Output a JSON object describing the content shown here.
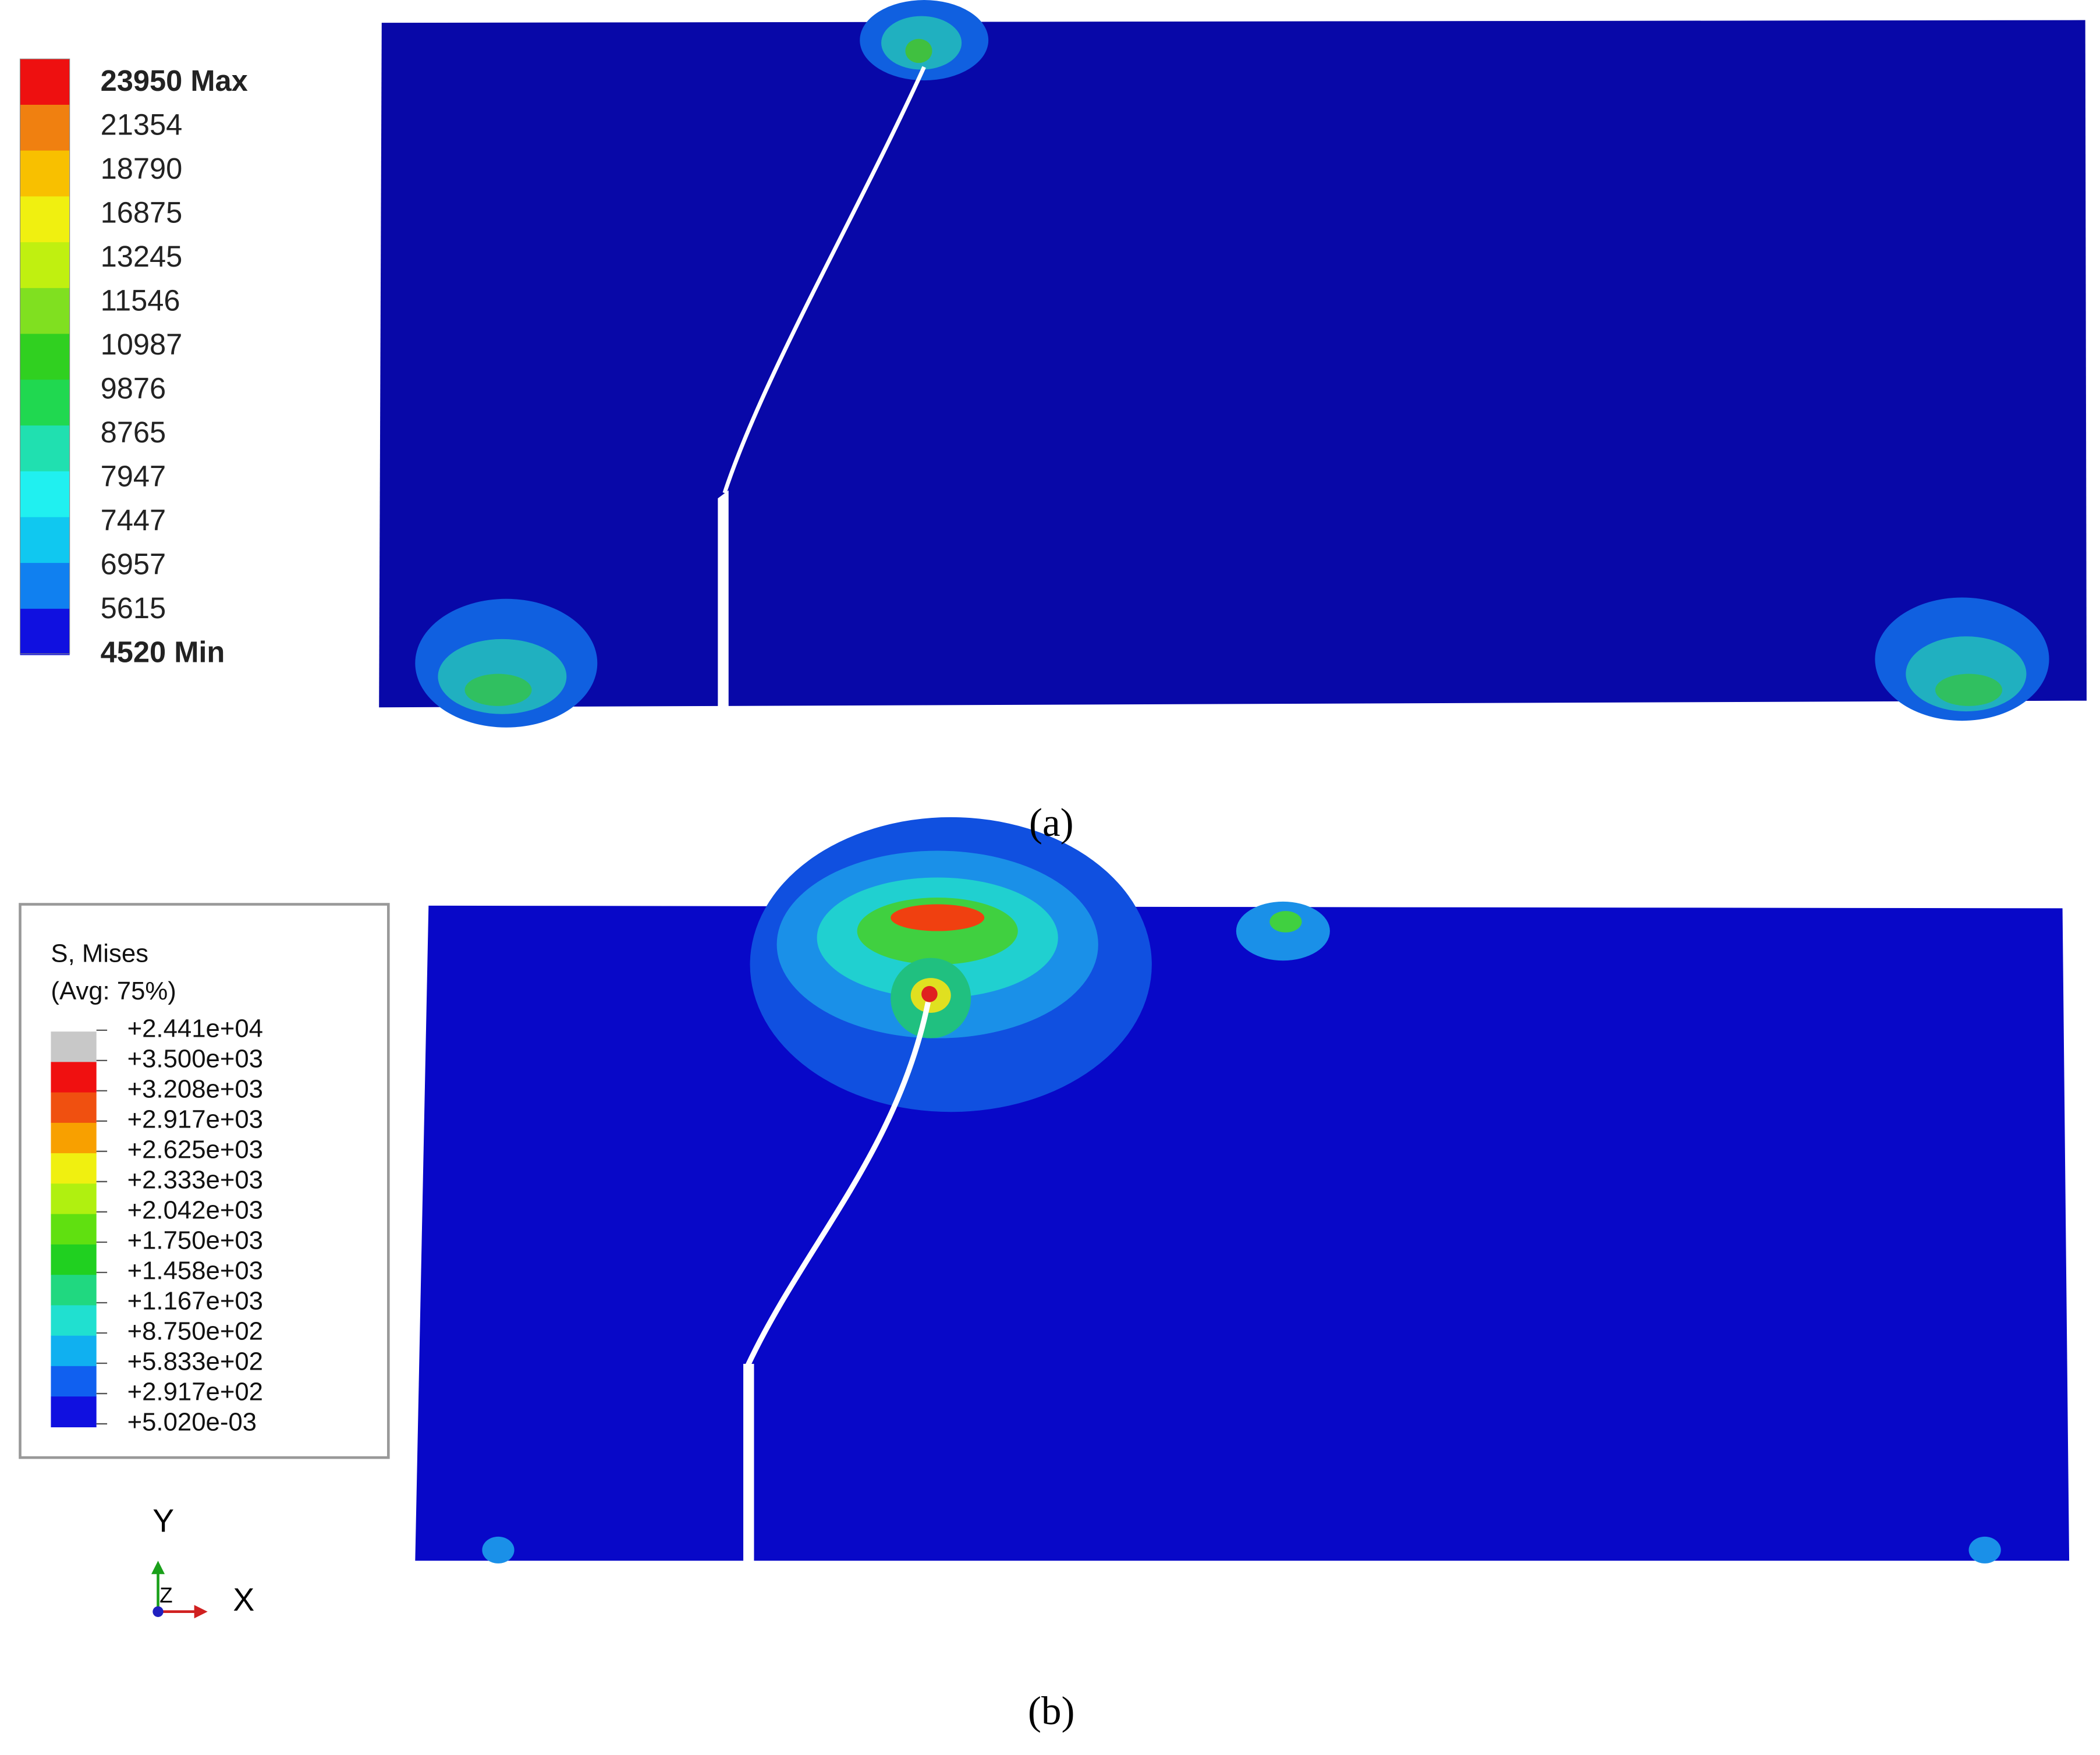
{
  "panel_a": {
    "caption": "(a)",
    "legend": [
      "23950 Max",
      "21354",
      "18790",
      "16875",
      "13245",
      "11546",
      "10987",
      "9876",
      "8765",
      "7947",
      "7447",
      "6957",
      "5615",
      "4520 Min"
    ]
  },
  "panel_b": {
    "caption": "(b)",
    "legend_title": "S, Mises",
    "legend_subtitle": "(Avg: 75%)",
    "legend": [
      "+2.441e+04",
      "+3.500e+03",
      "+3.208e+03",
      "+2.917e+03",
      "+2.625e+03",
      "+2.333e+03",
      "+2.042e+03",
      "+1.750e+03",
      "+1.458e+03",
      "+1.167e+03",
      "+8.750e+02",
      "+5.833e+02",
      "+2.917e+02",
      "+5.020e-03"
    ]
  },
  "triad": {
    "y": "Y",
    "z": "Z",
    "x": "X"
  }
}
